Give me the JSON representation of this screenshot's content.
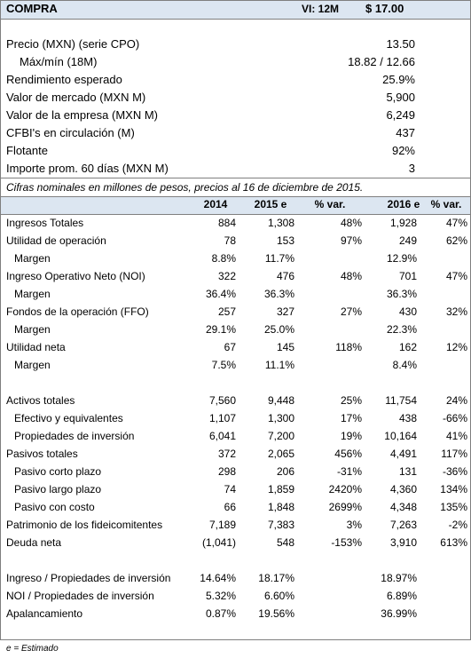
{
  "header": {
    "title": "COMPRA",
    "horizon": "VI: 12M",
    "price": "$ 17.00"
  },
  "summary": [
    {
      "label": "Precio (MXN) (serie CPO)",
      "value": "13.50"
    },
    {
      "label": "Máx/mín (18M)",
      "value": "18.82 / 12.66"
    },
    {
      "label": "Rendimiento esperado",
      "value": "25.9%"
    },
    {
      "label": "Valor de mercado (MXN M)",
      "value": "5,900"
    },
    {
      "label": "Valor de la empresa (MXN M)",
      "value": "6,249"
    },
    {
      "label": "CFBI's en circulación (M)",
      "value": "437"
    },
    {
      "label": "Flotante",
      "value": "92%"
    },
    {
      "label": "Importe prom. 60 días (MXN M)",
      "value": "3"
    }
  ],
  "note": "Cifras nominales en millones de pesos, precios al 16 de diciembre de 2015.",
  "table": {
    "columns": [
      "2014",
      "2015 e",
      "% var.",
      "2016 e",
      "% var."
    ],
    "rows": [
      [
        "Ingresos Totales",
        "884",
        "1,308",
        "48%",
        "1,928",
        "47%"
      ],
      [
        "Utilidad de operación",
        "78",
        "153",
        "97%",
        "249",
        "62%"
      ],
      [
        "Margen",
        "8.8%",
        "11.7%",
        null,
        "12.9%",
        null
      ],
      [
        "Ingreso Operativo Neto (NOI)",
        "322",
        "476",
        "48%",
        "701",
        "47%"
      ],
      [
        "Margen",
        "36.4%",
        "36.3%",
        null,
        "36.3%",
        null
      ],
      [
        "Fondos de la operación (FFO)",
        "257",
        "327",
        "27%",
        "430",
        "32%"
      ],
      [
        "Margen",
        "29.1%",
        "25.0%",
        null,
        "22.3%",
        null
      ],
      [
        "Utilidad neta",
        "67",
        "145",
        "118%",
        "162",
        "12%"
      ],
      [
        "Margen",
        "7.5%",
        "11.1%",
        null,
        "8.4%",
        null
      ],
      [
        "Activos totales",
        "7,560",
        "9,448",
        "25%",
        "11,754",
        "24%"
      ],
      [
        "Efectivo y equivalentes",
        "1,107",
        "1,300",
        "17%",
        "438",
        "-66%"
      ],
      [
        "Propiedades de inversión",
        "6,041",
        "7,200",
        "19%",
        "10,164",
        "41%"
      ],
      [
        "Pasivos totales",
        "372",
        "2,065",
        "456%",
        "4,491",
        "117%"
      ],
      [
        "Pasivo corto plazo",
        "298",
        "206",
        "-31%",
        "131",
        "-36%"
      ],
      [
        "Pasivo largo plazo",
        "74",
        "1,859",
        "2420%",
        "4,360",
        "134%"
      ],
      [
        "Pasivo con costo",
        "66",
        "1,848",
        "2699%",
        "4,348",
        "135%"
      ],
      [
        "Patrimonio de los fideicomitentes",
        "7,189",
        "7,383",
        "3%",
        "7,263",
        "-2%"
      ],
      [
        "Deuda neta",
        "(1,041)",
        "548",
        "-153%",
        "3,910",
        "613%"
      ],
      [
        "Ingreso / Propiedades de inversión",
        "14.64%",
        "18.17%",
        null,
        "18.97%",
        null
      ],
      [
        "NOI / Propiedades de inversión",
        "5.32%",
        "6.60%",
        null,
        "6.89%",
        null
      ],
      [
        "Apalancamiento",
        "0.87%",
        "19.56%",
        null,
        "36.99%",
        null
      ]
    ]
  },
  "footnote": "e = Estimado"
}
